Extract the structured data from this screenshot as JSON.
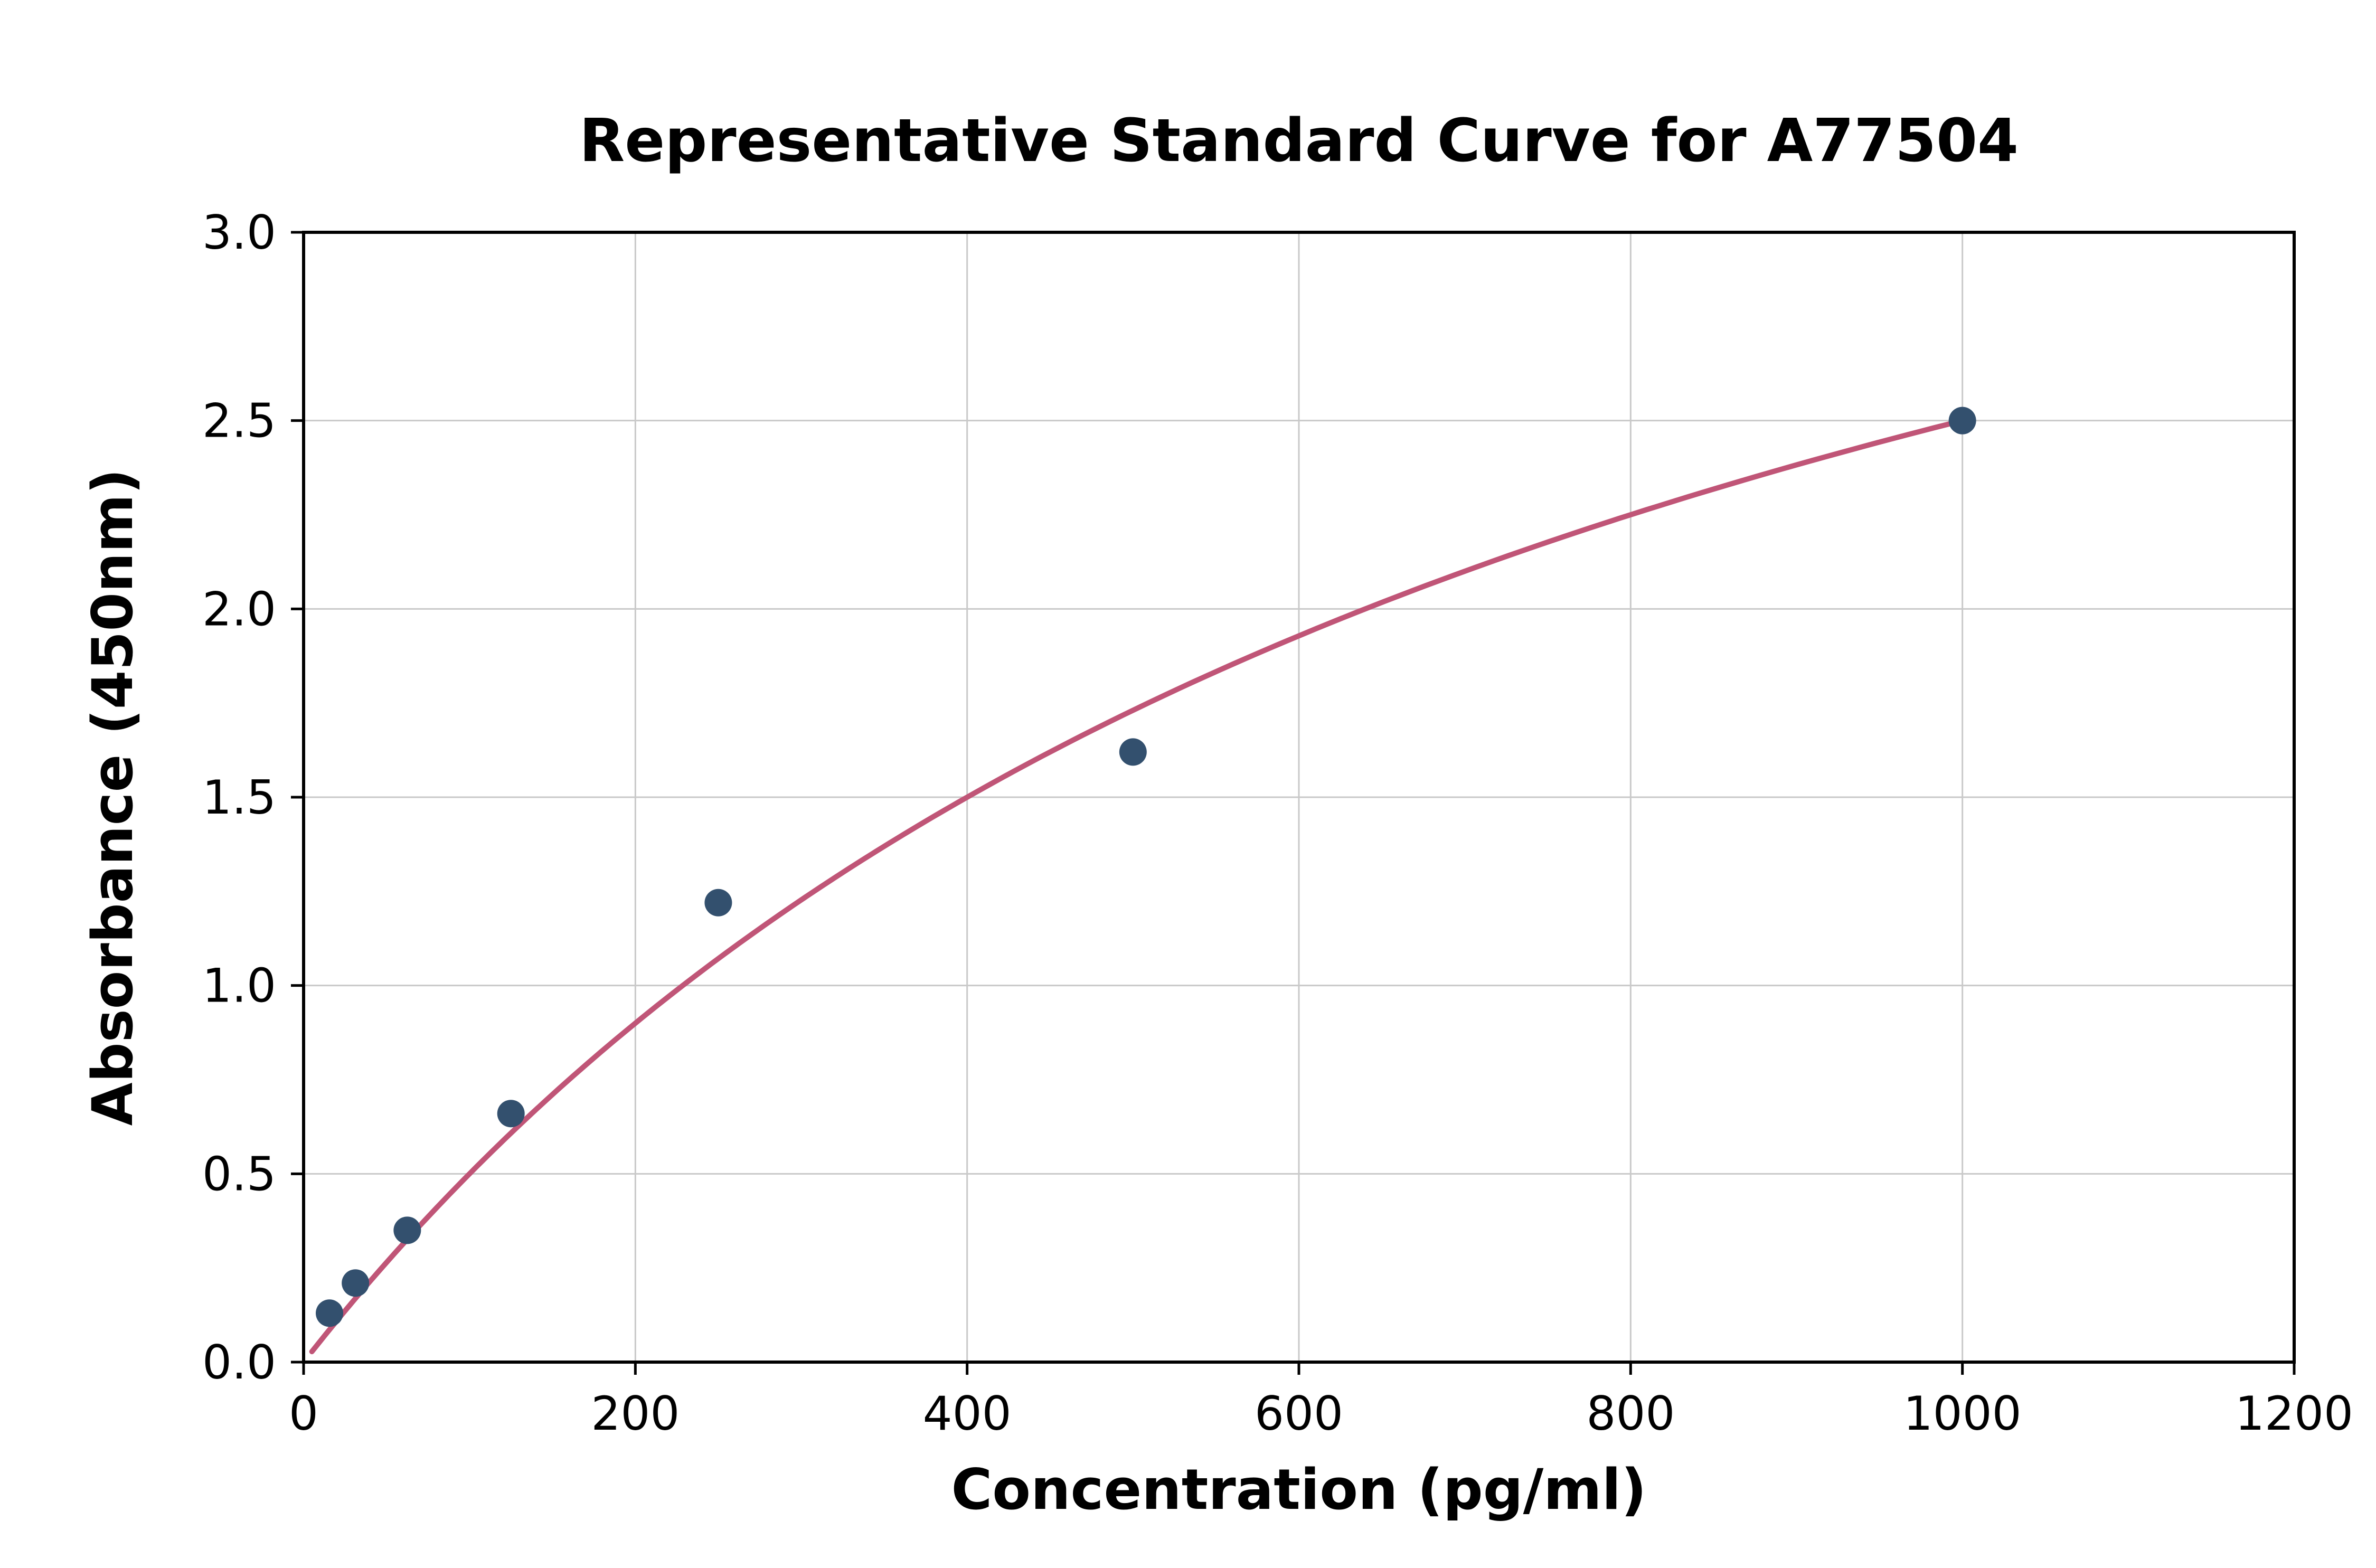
{
  "chart_data": {
    "type": "scatter",
    "title": "Representative Standard Curve for A77504",
    "xlabel": "Concentration (pg/ml)",
    "ylabel": "Absorbance (450nm)",
    "xlim": [
      0,
      1200
    ],
    "ylim": [
      0,
      3.0
    ],
    "x_ticks": [
      0,
      200,
      400,
      600,
      800,
      1000,
      1200
    ],
    "y_ticks": [
      0.0,
      0.5,
      1.0,
      1.5,
      2.0,
      2.5,
      3.0
    ],
    "grid": true,
    "legend": "none",
    "points": [
      {
        "x": 15.6,
        "y": 0.13
      },
      {
        "x": 31.25,
        "y": 0.21
      },
      {
        "x": 62.5,
        "y": 0.35
      },
      {
        "x": 125,
        "y": 0.66
      },
      {
        "x": 250,
        "y": 1.22
      },
      {
        "x": 500,
        "y": 1.62
      },
      {
        "x": 1000,
        "y": 2.5
      }
    ],
    "fit_curve": {
      "type": "saturation",
      "formula": "y = vmax * x / (km + x)",
      "vmax": 4.5,
      "km": 800,
      "x_start": 5,
      "x_end": 1000
    },
    "colors": {
      "point": "#33506e",
      "curve": "#c05577",
      "grid": "#c9c9c9",
      "axis": "#000000",
      "background": "#ffffff"
    }
  }
}
